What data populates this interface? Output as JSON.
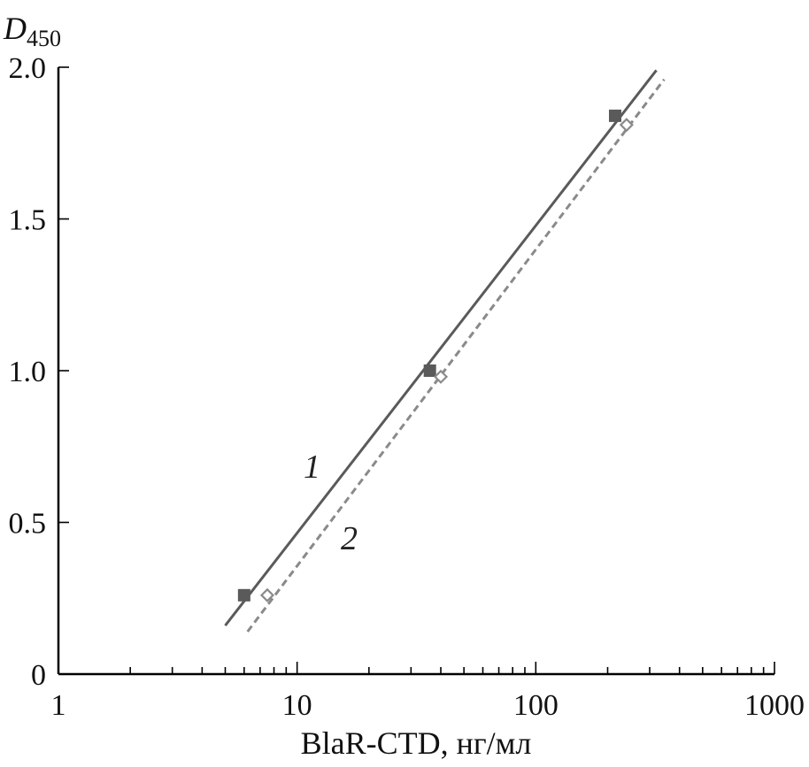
{
  "chart_data": {
    "type": "scatter",
    "x_scale": "log",
    "xlim": [
      1,
      1000
    ],
    "ylim": [
      0,
      2.0
    ],
    "xlabel": "BlaR-CTD, нг/мл",
    "ylabel_main": "D",
    "ylabel_sub": "450",
    "x_ticks": [
      "1",
      "10",
      "100",
      "1000"
    ],
    "x_tick_values": [
      1,
      10,
      100,
      1000
    ],
    "y_ticks": [
      "0",
      "0.5",
      "1.0",
      "1.5",
      "2.0"
    ],
    "y_tick_values": [
      0,
      0.5,
      1.0,
      1.5,
      2.0
    ],
    "grid": false,
    "series": [
      {
        "name": "1",
        "color": "#5a5a5a",
        "marker": "filled-square",
        "line": "solid",
        "points": [
          {
            "x": 6,
            "y": 0.26
          },
          {
            "x": 36,
            "y": 1.0
          },
          {
            "x": 215,
            "y": 1.84
          }
        ],
        "fit_line": [
          {
            "x": 5,
            "y": 0.16
          },
          {
            "x": 320,
            "y": 1.99
          }
        ]
      },
      {
        "name": "2",
        "color": "#8a8a8a",
        "marker": "open-diamond",
        "line": "dashed",
        "points": [
          {
            "x": 7.5,
            "y": 0.26
          },
          {
            "x": 40,
            "y": 0.98
          },
          {
            "x": 240,
            "y": 1.81
          }
        ],
        "fit_line": [
          {
            "x": 6.2,
            "y": 0.14
          },
          {
            "x": 345,
            "y": 1.96
          }
        ]
      }
    ]
  }
}
